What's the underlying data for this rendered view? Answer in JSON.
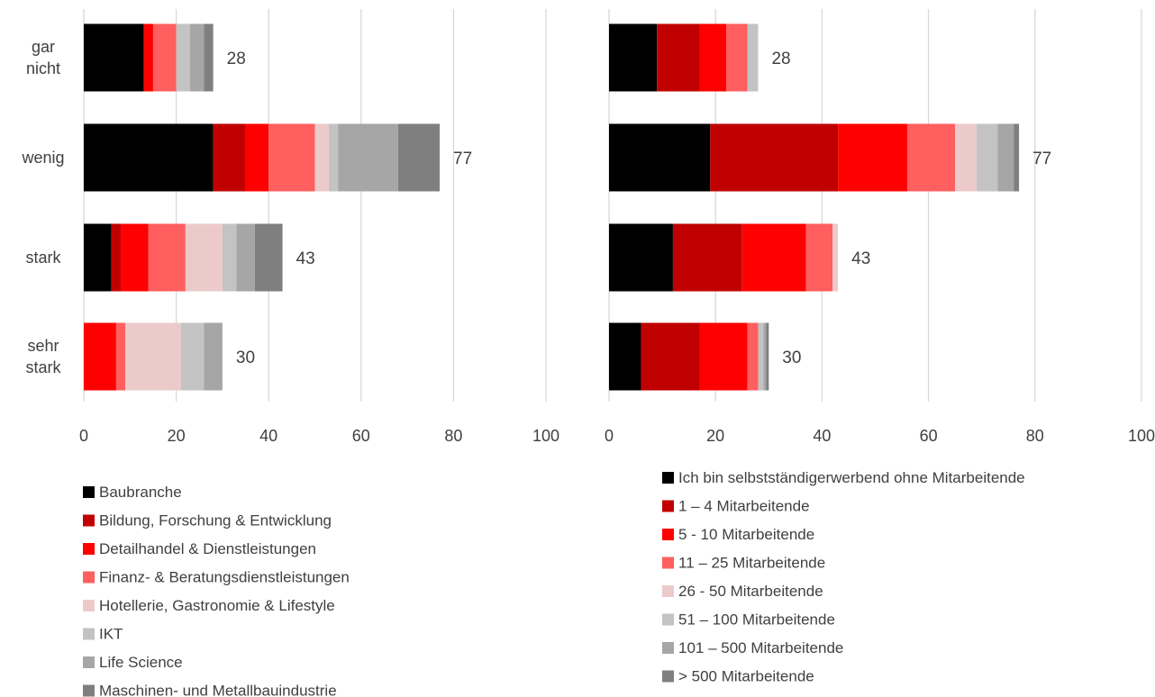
{
  "chart_data": [
    {
      "type": "bar",
      "orientation": "horizontal",
      "stacked": true,
      "categories": [
        [
          "gar",
          "nicht"
        ],
        [
          "wenig"
        ],
        [
          "stark"
        ],
        [
          "sehr",
          "stark"
        ]
      ],
      "xlim": [
        0,
        100
      ],
      "xticks": [
        0,
        20,
        40,
        60,
        80,
        100
      ],
      "grid": true,
      "legend_position": "bottom",
      "series": [
        {
          "name": "Baubranche",
          "color": "#000000",
          "values": [
            13,
            28,
            6,
            0
          ]
        },
        {
          "name": "Bildung, Forschung & Entwicklung",
          "color": "#C00000",
          "values": [
            0,
            7,
            2,
            0
          ]
        },
        {
          "name": "Detailhandel & Dienstleistungen",
          "color": "#FF0000",
          "values": [
            2,
            5,
            6,
            7
          ]
        },
        {
          "name": "Finanz- & Beratungsdienstleistungen",
          "color": "#FF5F5F",
          "values": [
            5,
            10,
            8,
            2
          ]
        },
        {
          "name": "Hotellerie, Gastronomie & Lifestyle",
          "color": "#EDCACA",
          "values": [
            0,
            3,
            8,
            12
          ]
        },
        {
          "name": "IKT",
          "color": "#C3C3C3",
          "values": [
            3,
            2,
            3,
            5
          ]
        },
        {
          "name": "Life Science",
          "color": "#A6A6A6",
          "values": [
            3,
            13,
            4,
            4
          ]
        },
        {
          "name": "Maschinen- und Metallbauindustrie",
          "color": "#7F7F7F",
          "values": [
            2,
            9,
            6,
            0
          ]
        }
      ],
      "totals": [
        "28",
        "77",
        "43",
        "30"
      ]
    },
    {
      "type": "bar",
      "orientation": "horizontal",
      "stacked": true,
      "categories": [
        [
          "gar",
          "nicht"
        ],
        [
          "wenig"
        ],
        [
          "stark"
        ],
        [
          "sehr",
          "stark"
        ]
      ],
      "xlim": [
        0,
        100
      ],
      "xticks": [
        0,
        20,
        40,
        60,
        80,
        100
      ],
      "grid": true,
      "legend_position": "bottom",
      "series": [
        {
          "name": "Ich bin selbstständigerwerbend ohne Mitarbeitende",
          "color": "#000000",
          "values": [
            9,
            19,
            12,
            6
          ]
        },
        {
          "name": "1 – 4 Mitarbeitende",
          "color": "#C00000",
          "values": [
            8,
            24,
            13,
            11
          ]
        },
        {
          "name": "5 - 10 Mitarbeitende",
          "color": "#FF0000",
          "values": [
            5,
            13,
            12,
            9
          ]
        },
        {
          "name": "11 – 25 Mitarbeitende",
          "color": "#FF5F5F",
          "values": [
            4,
            9,
            5,
            2
          ]
        },
        {
          "name": "26 - 50 Mitarbeitende",
          "color": "#EDCACA",
          "values": [
            0,
            4,
            1,
            0
          ]
        },
        {
          "name": "51 – 100 Mitarbeitende",
          "color": "#C3C3C3",
          "values": [
            2,
            4,
            0,
            1
          ]
        },
        {
          "name": "101 – 500 Mitarbeitende",
          "color": "#A6A6A6",
          "values": [
            0,
            3,
            0,
            0.5
          ]
        },
        {
          "name": "> 500 Mitarbeitende",
          "color": "#7F7F7F",
          "values": [
            0,
            1,
            0,
            0.5
          ]
        }
      ],
      "totals": [
        "28",
        "77",
        "43",
        "30"
      ]
    }
  ]
}
